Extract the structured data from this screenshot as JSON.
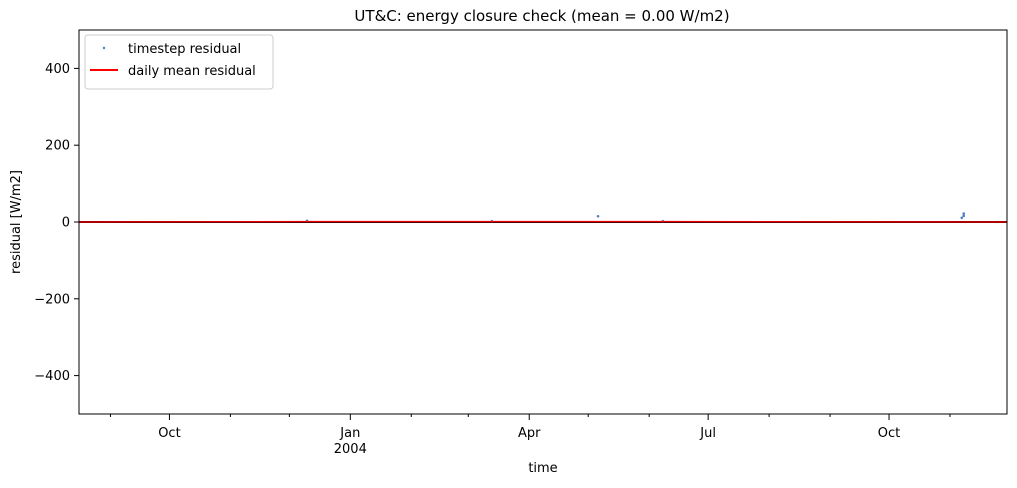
{
  "chart_data": {
    "type": "line",
    "title": "UT&C: energy closure check (mean = 0.00 W/m2)",
    "xlabel": "time",
    "ylabel": "residual [W/m2]",
    "ylim": [
      -500,
      500
    ],
    "xlim": [
      "2003-08-16",
      "2004-11-30"
    ],
    "y_ticks": [
      {
        "value": 400,
        "label": "400"
      },
      {
        "value": 200,
        "label": "200"
      },
      {
        "value": 0,
        "label": "0"
      },
      {
        "value": -200,
        "label": "−200"
      },
      {
        "value": -400,
        "label": "−400"
      }
    ],
    "x_major_ticks": [
      {
        "date": "2003-10-01",
        "label": "Oct",
        "sublabel": ""
      },
      {
        "date": "2004-01-01",
        "label": "Jan",
        "sublabel": "2004"
      },
      {
        "date": "2004-04-01",
        "label": "Apr",
        "sublabel": ""
      },
      {
        "date": "2004-07-01",
        "label": "Jul",
        "sublabel": ""
      },
      {
        "date": "2004-10-01",
        "label": "Oct",
        "sublabel": ""
      }
    ],
    "x_minor_ticks": [
      "2003-09-01",
      "2003-11-01",
      "2003-12-01",
      "2004-02-01",
      "2004-03-01",
      "2004-05-01",
      "2004-06-01",
      "2004-08-01",
      "2004-09-01",
      "2004-11-01"
    ],
    "grid": false,
    "legend_placement": "top-left",
    "series": [
      {
        "name": "timestep residual",
        "style": "points",
        "color": "#4a7fc1",
        "points": [
          {
            "x": "2004-05-06",
            "y": 15
          },
          {
            "x": "2004-11-08",
            "y": 22
          },
          {
            "x": "2004-11-08",
            "y": 16
          },
          {
            "x": "2004-11-07",
            "y": 11
          },
          {
            "x": "2003-12-10",
            "y": 3
          },
          {
            "x": "2004-03-13",
            "y": 2
          },
          {
            "x": "2004-06-08",
            "y": 2
          }
        ]
      },
      {
        "name": "daily mean residual",
        "style": "line",
        "color": "#ff0000",
        "points": [
          {
            "x": "2003-08-16",
            "y": 0
          },
          {
            "x": "2003-12-10",
            "y": 1
          },
          {
            "x": "2004-03-13",
            "y": 1
          },
          {
            "x": "2004-06-08",
            "y": 1
          },
          {
            "x": "2004-11-30",
            "y": 0
          }
        ]
      }
    ],
    "reference_line": {
      "y": 0,
      "color": "#000000"
    }
  }
}
